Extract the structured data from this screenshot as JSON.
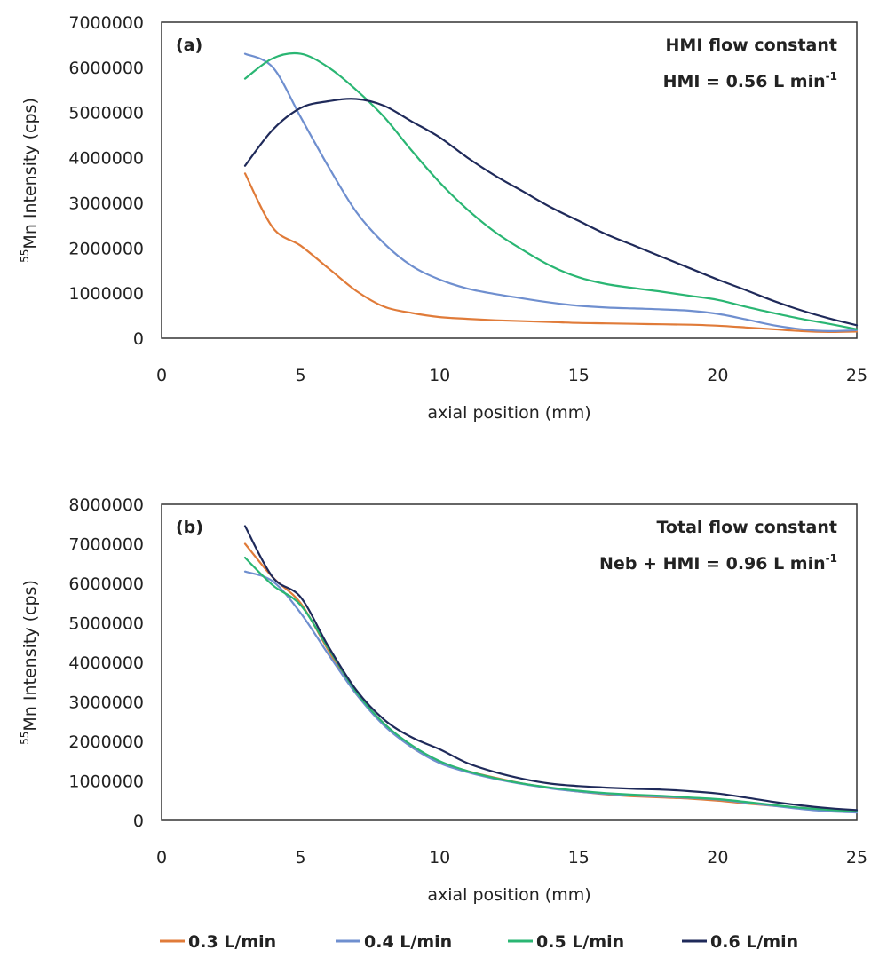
{
  "chart_data": [
    {
      "type": "line",
      "panel_label": "(a)",
      "annotation_lines": [
        {
          "base": "HMI flow constant",
          "sup": ""
        },
        {
          "base": "HMI = 0.56 L min",
          "sup": "-1"
        }
      ],
      "xlabel": "axial position (mm)",
      "ylabel": {
        "sup": "55",
        "base": "Mn Intensity (cps)"
      },
      "xlim": [
        0,
        25
      ],
      "ylim": [
        0,
        7000000
      ],
      "xticks": [
        "0",
        "5",
        "10",
        "15",
        "20",
        "25"
      ],
      "yticks": [
        "0",
        "1000000",
        "2000000",
        "3000000",
        "4000000",
        "5000000",
        "6000000",
        "7000000"
      ],
      "grid": false,
      "x": [
        3,
        4,
        5,
        6,
        7,
        8,
        9,
        10,
        11,
        12,
        13,
        14,
        15,
        16,
        17,
        18,
        19,
        20,
        21,
        22,
        23,
        24,
        25
      ],
      "series": [
        {
          "name": "0.3 L/min",
          "values": [
            3650000,
            2450000,
            2050000,
            1550000,
            1050000,
            700000,
            560000,
            470000,
            430000,
            400000,
            380000,
            360000,
            340000,
            330000,
            320000,
            310000,
            300000,
            280000,
            240000,
            200000,
            160000,
            140000,
            150000
          ]
        },
        {
          "name": "0.4 L/min",
          "values": [
            6300000,
            6000000,
            4900000,
            3800000,
            2800000,
            2100000,
            1600000,
            1300000,
            1100000,
            980000,
            880000,
            790000,
            720000,
            680000,
            660000,
            640000,
            610000,
            540000,
            420000,
            290000,
            200000,
            160000,
            180000
          ]
        },
        {
          "name": "0.5 L/min",
          "values": [
            5750000,
            6200000,
            6300000,
            6000000,
            5500000,
            4900000,
            4150000,
            3450000,
            2850000,
            2350000,
            1950000,
            1600000,
            1350000,
            1200000,
            1110000,
            1030000,
            940000,
            850000,
            700000,
            560000,
            430000,
            320000,
            200000
          ]
        },
        {
          "name": "0.6 L/min",
          "values": [
            3820000,
            4620000,
            5100000,
            5250000,
            5300000,
            5150000,
            4800000,
            4450000,
            4000000,
            3600000,
            3250000,
            2900000,
            2600000,
            2300000,
            2050000,
            1800000,
            1550000,
            1300000,
            1070000,
            830000,
            620000,
            440000,
            290000
          ]
        }
      ]
    },
    {
      "type": "line",
      "panel_label": "(b)",
      "annotation_lines": [
        {
          "base": "Total flow constant",
          "sup": ""
        },
        {
          "base": "Neb + HMI = 0.96 L min",
          "sup": "-1"
        }
      ],
      "xlabel": "axial position (mm)",
      "ylabel": {
        "sup": "55",
        "base": "Mn Intensity (cps)"
      },
      "xlim": [
        0,
        25
      ],
      "ylim": [
        0,
        8000000
      ],
      "xticks": [
        "0",
        "5",
        "10",
        "15",
        "20",
        "25"
      ],
      "yticks": [
        "0",
        "1000000",
        "2000000",
        "3000000",
        "4000000",
        "5000000",
        "6000000",
        "7000000",
        "8000000"
      ],
      "grid": false,
      "x": [
        3,
        4,
        5,
        6,
        7,
        8,
        9,
        10,
        11,
        12,
        13,
        14,
        15,
        16,
        17,
        18,
        19,
        20,
        21,
        22,
        23,
        24,
        25
      ],
      "series": [
        {
          "name": "0.3 L/min",
          "values": [
            7000000,
            6150000,
            5500000,
            4300000,
            3200000,
            2450000,
            1850000,
            1480000,
            1250000,
            1080000,
            930000,
            820000,
            730000,
            660000,
            610000,
            580000,
            550000,
            500000,
            430000,
            370000,
            320000,
            270000,
            230000
          ]
        },
        {
          "name": "0.4 L/min",
          "values": [
            6300000,
            6050000,
            5250000,
            4200000,
            3200000,
            2400000,
            1850000,
            1450000,
            1220000,
            1050000,
            920000,
            810000,
            730000,
            670000,
            630000,
            600000,
            570000,
            530000,
            450000,
            370000,
            290000,
            230000,
            200000
          ]
        },
        {
          "name": "0.5 L/min",
          "values": [
            6650000,
            5950000,
            5450000,
            4350000,
            3250000,
            2450000,
            1900000,
            1500000,
            1250000,
            1070000,
            930000,
            830000,
            750000,
            690000,
            650000,
            620000,
            580000,
            540000,
            470000,
            390000,
            320000,
            270000,
            230000
          ]
        },
        {
          "name": "0.6 L/min",
          "values": [
            7450000,
            6150000,
            5650000,
            4400000,
            3300000,
            2550000,
            2100000,
            1800000,
            1450000,
            1220000,
            1050000,
            930000,
            870000,
            830000,
            800000,
            780000,
            740000,
            680000,
            580000,
            470000,
            380000,
            310000,
            260000
          ]
        }
      ]
    }
  ],
  "legend": {
    "placement": "bottom",
    "items": [
      {
        "label": "0.3 L/min",
        "color": "#e07b39"
      },
      {
        "label": "0.4 L/min",
        "color": "#6f8fcf"
      },
      {
        "label": "0.5 L/min",
        "color": "#2ab673"
      },
      {
        "label": "0.6 L/min",
        "color": "#1f2a5a"
      }
    ]
  }
}
